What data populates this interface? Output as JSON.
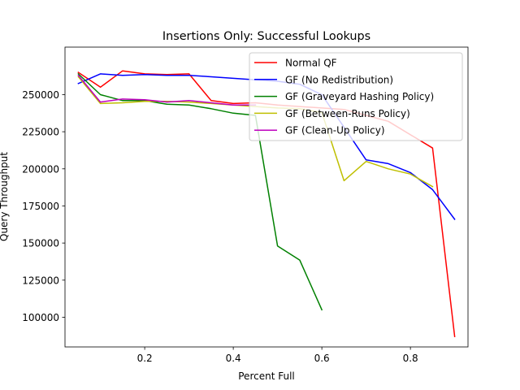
{
  "chart_data": {
    "type": "line",
    "title": "Insertions Only: Successful Lookups",
    "xlabel": "Percent Full",
    "ylabel": "Query Throughput",
    "xlim": [
      0.02,
      0.93
    ],
    "ylim": [
      80000,
      282000
    ],
    "xticks": [
      0.2,
      0.4,
      0.6,
      0.8
    ],
    "xtick_labels": [
      "0.2",
      "0.4",
      "0.6",
      "0.8"
    ],
    "yticks": [
      100000,
      125000,
      150000,
      175000,
      200000,
      225000,
      250000
    ],
    "ytick_labels": [
      "100000",
      "125000",
      "150000",
      "175000",
      "200000",
      "225000",
      "250000"
    ],
    "grid": false,
    "legend_position": "top-right",
    "series": [
      {
        "name": "Normal QF",
        "color": "#ff0000",
        "x": [
          0.05,
          0.1,
          0.15,
          0.2,
          0.25,
          0.3,
          0.35,
          0.4,
          0.45,
          0.5,
          0.55,
          0.6,
          0.65,
          0.7,
          0.75,
          0.8,
          0.85,
          0.9
        ],
        "y": [
          265000,
          255000,
          266000,
          264000,
          263500,
          264000,
          246000,
          244000,
          244500,
          243000,
          242000,
          241000,
          240000,
          236000,
          232000,
          223000,
          214000,
          87000
        ]
      },
      {
        "name": "GF (No Redistribution)",
        "color": "#0000ff",
        "x": [
          0.05,
          0.1,
          0.15,
          0.2,
          0.25,
          0.3,
          0.35,
          0.4,
          0.45,
          0.5,
          0.55,
          0.6,
          0.65,
          0.7,
          0.75,
          0.8,
          0.85,
          0.9
        ],
        "y": [
          257500,
          264000,
          263000,
          263500,
          263000,
          263000,
          262000,
          261000,
          260000,
          259000,
          257000,
          250000,
          228000,
          206000,
          203500,
          197500,
          186000,
          166000
        ]
      },
      {
        "name": "GF (Graveyard Hashing Policy)",
        "color": "#008000",
        "x": [
          0.05,
          0.1,
          0.15,
          0.2,
          0.25,
          0.3,
          0.35,
          0.4,
          0.45,
          0.5,
          0.55,
          0.6
        ],
        "y": [
          264000,
          250000,
          246000,
          246000,
          243500,
          243000,
          240500,
          237500,
          236000,
          148000,
          138500,
          105000
        ]
      },
      {
        "name": "GF (Between-Runs Policy)",
        "color": "#bfbf00",
        "x": [
          0.05,
          0.1,
          0.15,
          0.2,
          0.25,
          0.3,
          0.35,
          0.4,
          0.45,
          0.5,
          0.55,
          0.6,
          0.65,
          0.7,
          0.75,
          0.8,
          0.85
        ],
        "y": [
          262000,
          244000,
          244500,
          245500,
          245500,
          245000,
          244000,
          243000,
          242000,
          241000,
          240500,
          238000,
          192000,
          205000,
          200000,
          196500,
          188000
        ]
      },
      {
        "name": "GF (Clean-Up Policy)",
        "color": "#bf00bf",
        "x": [
          0.05,
          0.1,
          0.15,
          0.2,
          0.25,
          0.3,
          0.35,
          0.4,
          0.45
        ],
        "y": [
          263000,
          245000,
          247000,
          246500,
          245000,
          246000,
          244500,
          243000,
          243000
        ]
      }
    ]
  }
}
